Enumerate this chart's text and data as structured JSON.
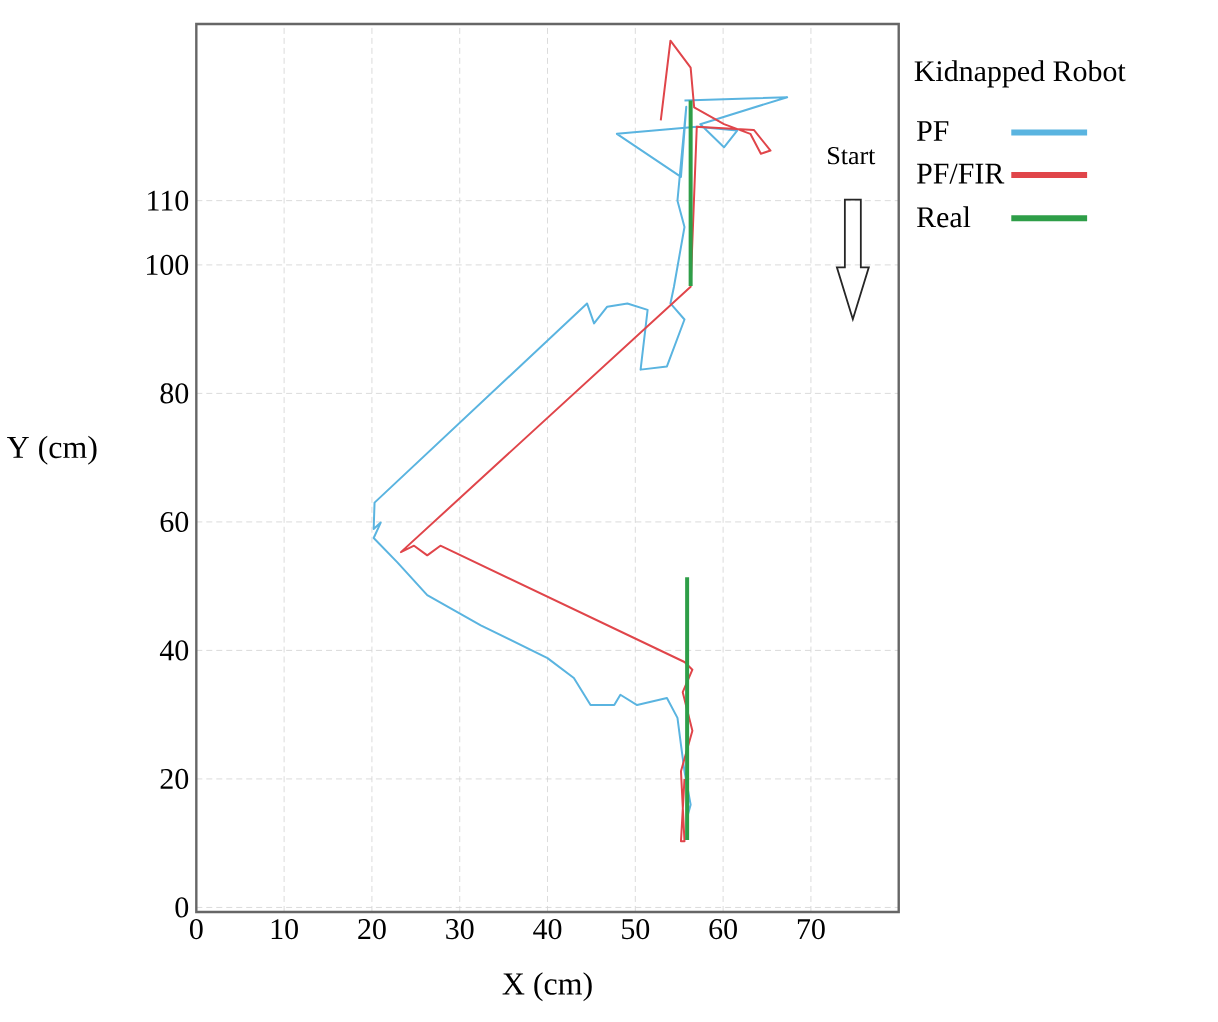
{
  "chart_data": {
    "type": "line",
    "xlabel": "X (cm)",
    "ylabel": "Y (cm)",
    "legend_title": "Kidnapped Robot",
    "xlim": [
      0,
      80
    ],
    "ylim": [
      -0.7,
      137.5
    ],
    "xticks": [
      0,
      10,
      20,
      30,
      40,
      50,
      60,
      70
    ],
    "yticks": [
      0,
      20,
      40,
      60,
      80,
      100,
      110
    ],
    "grid": true,
    "legend": "top right",
    "marker": "none",
    "line_style": "solid",
    "annotations": [
      "Start"
    ],
    "series": [
      {
        "name": "PF",
        "color": "#5ab4e0",
        "x": [
          55.6,
          67.3,
          57.4,
          60.1,
          61.6,
          57.0,
          47.9,
          55.2,
          55.8,
          54.8,
          55.6,
          54.4,
          54.0,
          55.6,
          53.6,
          50.6,
          51.4,
          49.1,
          46.8,
          45.3,
          44.5,
          20.3,
          20.2,
          21.0,
          20.2,
          22.9,
          26.3,
          32.4,
          40.0,
          43.0,
          44.9,
          47.6,
          48.3,
          50.2,
          53.6,
          54.8,
          55.2,
          55.6,
          56.3,
          55.9
        ],
        "values": [
          125.6,
          126.1,
          121.9,
          118.3,
          120.9,
          121.5,
          120.4,
          113.7,
          124.6,
          110.0,
          105.9,
          96.6,
          94.0,
          91.5,
          84.2,
          83.7,
          93.0,
          94.0,
          93.5,
          90.9,
          94.0,
          63.0,
          58.9,
          59.9,
          57.5,
          53.7,
          48.6,
          43.9,
          38.8,
          35.7,
          31.5,
          31.5,
          33.1,
          31.5,
          32.6,
          29.5,
          25.3,
          21.2,
          16.0,
          14.0
        ]
      },
      {
        "name": "PF/FIR",
        "color": "#e0454a",
        "x": [
          52.9,
          54.0,
          56.3,
          56.7,
          60.1,
          63.1,
          64.3,
          65.4,
          63.5,
          57.0,
          56.3,
          23.3,
          24.8,
          26.3,
          27.8,
          55.6,
          56.5,
          55.4,
          56.5,
          55.2,
          55.6,
          55.2,
          55.6
        ],
        "values": [
          122.5,
          134.9,
          130.7,
          124.5,
          121.9,
          120.4,
          117.3,
          117.8,
          121.0,
          121.5,
          96.6,
          55.3,
          56.3,
          54.8,
          56.3,
          38.2,
          37.0,
          33.5,
          27.5,
          21.2,
          10.3,
          10.3,
          20.0
        ]
      },
      {
        "name": "Real",
        "color": "#2e9e48",
        "x": [
          55.9,
          55.9,
          56.0,
          56.3,
          56.3
        ],
        "values": [
          10.5,
          51.4,
          null,
          96.7,
          125.6
        ]
      }
    ]
  }
}
